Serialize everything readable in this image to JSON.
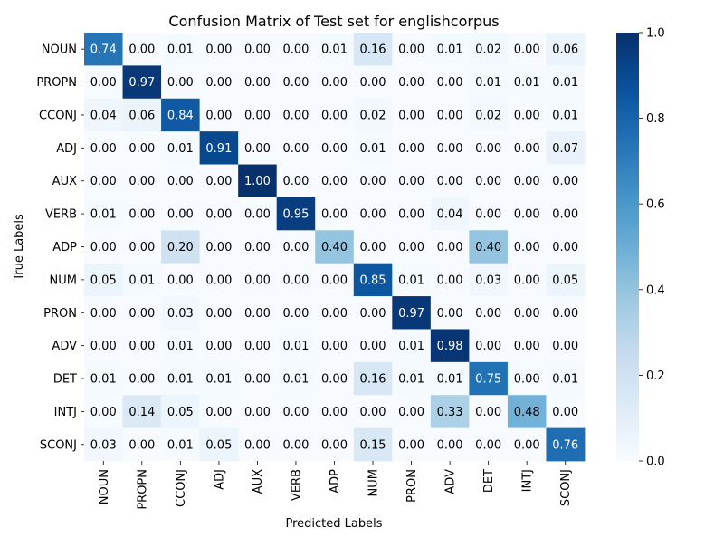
{
  "chart_data": {
    "type": "heatmap",
    "title": "Confusion Matrix of Test set for englishcorpus",
    "xlabel": "Predicted Labels",
    "ylabel": "True Labels",
    "x_categories": [
      "NOUN",
      "PROPN",
      "CCONJ",
      "ADJ",
      "AUX",
      "VERB",
      "ADP",
      "NUM",
      "PRON",
      "ADV",
      "DET",
      "INTJ",
      "SCONJ"
    ],
    "y_categories": [
      "NOUN",
      "PROPN",
      "CCONJ",
      "ADJ",
      "AUX",
      "VERB",
      "ADP",
      "NUM",
      "PRON",
      "ADV",
      "DET",
      "INTJ",
      "SCONJ"
    ],
    "values": [
      [
        0.74,
        0.0,
        0.01,
        0.0,
        0.0,
        0.0,
        0.01,
        0.16,
        0.0,
        0.01,
        0.02,
        0.0,
        0.06
      ],
      [
        0.0,
        0.97,
        0.0,
        0.0,
        0.0,
        0.0,
        0.0,
        0.0,
        0.0,
        0.0,
        0.01,
        0.01,
        0.01
      ],
      [
        0.04,
        0.06,
        0.84,
        0.0,
        0.0,
        0.0,
        0.0,
        0.02,
        0.0,
        0.0,
        0.02,
        0.0,
        0.01
      ],
      [
        0.0,
        0.0,
        0.01,
        0.91,
        0.0,
        0.0,
        0.0,
        0.01,
        0.0,
        0.0,
        0.0,
        0.0,
        0.07
      ],
      [
        0.0,
        0.0,
        0.0,
        0.0,
        1.0,
        0.0,
        0.0,
        0.0,
        0.0,
        0.0,
        0.0,
        0.0,
        0.0
      ],
      [
        0.01,
        0.0,
        0.0,
        0.0,
        0.0,
        0.95,
        0.0,
        0.0,
        0.0,
        0.04,
        0.0,
        0.0,
        0.0
      ],
      [
        0.0,
        0.0,
        0.2,
        0.0,
        0.0,
        0.0,
        0.4,
        0.0,
        0.0,
        0.0,
        0.4,
        0.0,
        0.0
      ],
      [
        0.05,
        0.01,
        0.0,
        0.0,
        0.0,
        0.0,
        0.0,
        0.85,
        0.01,
        0.0,
        0.03,
        0.0,
        0.05
      ],
      [
        0.0,
        0.0,
        0.03,
        0.0,
        0.0,
        0.0,
        0.0,
        0.0,
        0.97,
        0.0,
        0.0,
        0.0,
        0.0
      ],
      [
        0.0,
        0.0,
        0.01,
        0.0,
        0.0,
        0.01,
        0.0,
        0.0,
        0.01,
        0.98,
        0.0,
        0.0,
        0.0
      ],
      [
        0.01,
        0.0,
        0.01,
        0.01,
        0.0,
        0.01,
        0.0,
        0.16,
        0.01,
        0.01,
        0.75,
        0.0,
        0.01
      ],
      [
        0.0,
        0.14,
        0.05,
        0.0,
        0.0,
        0.0,
        0.0,
        0.0,
        0.0,
        0.33,
        0.0,
        0.48,
        0.0
      ],
      [
        0.03,
        0.0,
        0.01,
        0.05,
        0.0,
        0.0,
        0.0,
        0.15,
        0.0,
        0.0,
        0.0,
        0.0,
        0.76
      ]
    ],
    "value_format": "two decimals",
    "colormap": "Blues",
    "colorbar": {
      "range": [
        0.0,
        1.0
      ],
      "ticks": [
        "0.0",
        "0.2",
        "0.4",
        "0.6",
        "0.8",
        "1.0"
      ],
      "position": "right"
    },
    "grid": false
  }
}
